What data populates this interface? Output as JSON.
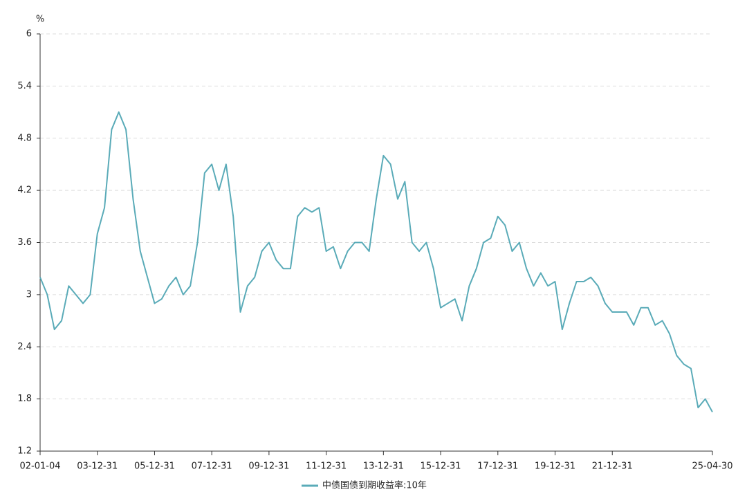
{
  "chart_data": {
    "type": "line",
    "y_label": "%",
    "categories": [
      "02-01-04",
      null,
      null,
      null,
      null,
      null,
      null,
      null,
      "03-12-31",
      null,
      null,
      null,
      null,
      null,
      null,
      null,
      "05-12-31",
      null,
      null,
      null,
      null,
      null,
      null,
      null,
      "07-12-31",
      null,
      null,
      null,
      null,
      null,
      null,
      null,
      "09-12-31",
      null,
      null,
      null,
      null,
      null,
      null,
      null,
      "11-12-31",
      null,
      null,
      null,
      null,
      null,
      null,
      null,
      "13-12-31",
      null,
      null,
      null,
      null,
      null,
      null,
      null,
      "15-12-31",
      null,
      null,
      null,
      null,
      null,
      null,
      null,
      "17-12-31",
      null,
      null,
      null,
      null,
      null,
      null,
      null,
      "19-12-31",
      null,
      null,
      null,
      null,
      null,
      null,
      null,
      "21-12-31",
      null,
      null,
      null,
      null,
      null,
      null,
      null,
      null,
      null,
      null,
      null,
      null,
      null,
      "25-04-30"
    ],
    "series": [
      {
        "name": "中债国债到期收益率:10年",
        "color": "#5aabb8",
        "values": [
          3.2,
          3.0,
          2.6,
          2.7,
          3.1,
          3.0,
          2.9,
          3.0,
          3.7,
          4.0,
          4.9,
          5.1,
          4.9,
          4.1,
          3.5,
          3.2,
          2.9,
          2.95,
          3.1,
          3.2,
          3.0,
          3.1,
          3.6,
          4.4,
          4.5,
          4.2,
          4.5,
          3.9,
          2.8,
          3.1,
          3.2,
          3.5,
          3.6,
          3.4,
          3.3,
          3.3,
          3.9,
          4.0,
          3.95,
          4.0,
          3.5,
          3.55,
          3.3,
          3.5,
          3.6,
          3.6,
          3.5,
          4.1,
          4.6,
          4.5,
          4.1,
          4.3,
          3.6,
          3.5,
          3.6,
          3.3,
          2.85,
          2.9,
          2.95,
          2.7,
          3.1,
          3.3,
          3.6,
          3.65,
          3.9,
          3.8,
          3.5,
          3.6,
          3.3,
          3.1,
          3.25,
          3.1,
          3.15,
          2.6,
          2.9,
          3.15,
          3.15,
          3.2,
          3.1,
          2.9,
          2.8,
          2.8,
          2.8,
          2.65,
          2.85,
          2.85,
          2.65,
          2.7,
          2.55,
          2.3,
          2.2,
          2.15,
          1.7,
          1.8,
          1.65
        ]
      }
    ],
    "ylim": [
      1.2,
      6
    ],
    "yticks": [
      1.2,
      1.8,
      2.4,
      3,
      3.6,
      4.2,
      4.8,
      5.4,
      6
    ],
    "grid": true
  }
}
